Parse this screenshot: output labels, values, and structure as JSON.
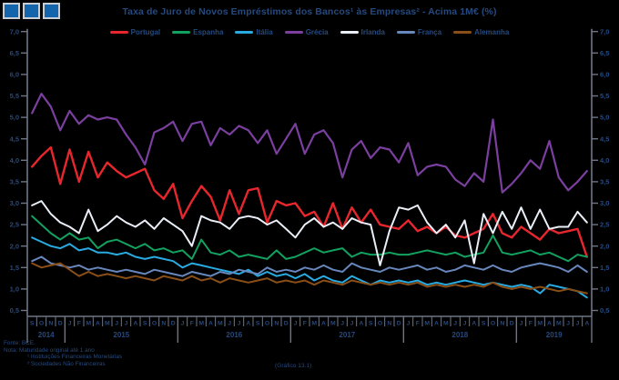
{
  "colors": {
    "background": "#000000",
    "text": "#25497e",
    "axis": "#6e7686"
  },
  "footer": {
    "source": "Fonte: BCE.",
    "note": "Nota: Maturidade original até 1 ano",
    "fn1": "¹ Instituições Financeiras Monetárias",
    "fn2": "² Sociedades Não Financeiras",
    "caption": "(Gráfico 13.1)"
  },
  "chart_data": {
    "type": "line",
    "title": "Taxa de Juro de Novos Empréstimos dos Bancos¹ às Empresas² - Acima 1M€ (%)",
    "ylabel": "%",
    "ylim": [
      0.5,
      7.0
    ],
    "grid": false,
    "legend_position": "top",
    "ytick_labels": [
      "7,0",
      "6,5",
      "6,0",
      "5,5",
      "5,0",
      "4,5",
      "4,0",
      "3,5",
      "3,0",
      "2,5",
      "2,0",
      "1,5",
      "1,0",
      "0,5"
    ],
    "ytick_values": [
      7.0,
      6.5,
      6.0,
      5.5,
      5.0,
      4.5,
      4.0,
      3.5,
      3.0,
      2.5,
      2.0,
      1.5,
      1.0,
      0.5
    ],
    "months": [
      "S",
      "O",
      "N",
      "D",
      "J",
      "F",
      "M",
      "A",
      "M",
      "J",
      "J",
      "A",
      "S",
      "O",
      "N",
      "D",
      "J",
      "F",
      "M",
      "A",
      "M",
      "J",
      "J",
      "A",
      "S",
      "O",
      "N",
      "D",
      "J",
      "F",
      "M",
      "A",
      "M",
      "J",
      "J",
      "A",
      "S",
      "O",
      "N",
      "D",
      "J",
      "F",
      "M",
      "A",
      "M",
      "J",
      "J",
      "A",
      "S",
      "O",
      "N",
      "D",
      "J",
      "F",
      "M",
      "A",
      "M",
      "J",
      "J",
      "A"
    ],
    "years": [
      {
        "label": "2014",
        "start": 0,
        "count": 4
      },
      {
        "label": "2015",
        "start": 4,
        "count": 12
      },
      {
        "label": "2016",
        "start": 16,
        "count": 12
      },
      {
        "label": "2017",
        "start": 28,
        "count": 12
      },
      {
        "label": "2018",
        "start": 40,
        "count": 12
      },
      {
        "label": "2019",
        "start": 52,
        "count": 8
      }
    ],
    "series": [
      {
        "name": "Portugal",
        "slug": "portugal",
        "color": "#e8262d",
        "width": 2.4,
        "values": [
          3.85,
          4.1,
          4.3,
          3.45,
          4.25,
          3.5,
          4.2,
          3.6,
          3.95,
          3.75,
          3.6,
          3.7,
          3.8,
          3.3,
          3.1,
          3.45,
          2.65,
          3.05,
          3.4,
          3.15,
          2.6,
          3.3,
          2.75,
          3.3,
          3.35,
          2.55,
          3.05,
          2.95,
          3.0,
          2.7,
          2.8,
          2.45,
          3.0,
          2.4,
          2.9,
          2.55,
          2.85,
          2.5,
          2.45,
          2.4,
          2.6,
          2.35,
          2.45,
          2.3,
          2.45,
          2.25,
          2.2,
          2.3,
          2.4,
          2.75,
          2.3,
          2.2,
          2.45,
          2.3,
          2.15,
          2.4,
          2.3,
          2.35,
          2.4,
          1.75
        ]
      },
      {
        "name": "Espanha",
        "slug": "espanha",
        "color": "#12a15e",
        "width": 2,
        "values": [
          2.7,
          2.5,
          2.3,
          2.15,
          2.3,
          2.15,
          2.2,
          1.95,
          2.1,
          2.15,
          2.05,
          1.95,
          2.05,
          1.9,
          1.95,
          1.85,
          1.9,
          1.7,
          2.15,
          1.85,
          1.8,
          1.9,
          1.75,
          1.8,
          1.75,
          1.7,
          1.9,
          1.7,
          1.75,
          1.85,
          1.95,
          1.85,
          1.9,
          1.95,
          1.75,
          1.85,
          1.8,
          1.8,
          1.85,
          1.8,
          1.8,
          1.85,
          1.9,
          1.85,
          1.8,
          1.85,
          1.75,
          1.8,
          1.85,
          2.25,
          1.85,
          1.8,
          1.85,
          1.9,
          1.8,
          1.85,
          1.75,
          1.65,
          1.8,
          1.75
        ]
      },
      {
        "name": "Itália",
        "slug": "italia",
        "color": "#29abe2",
        "width": 2,
        "values": [
          2.2,
          2.1,
          2.0,
          1.95,
          2.05,
          1.9,
          1.95,
          1.85,
          1.85,
          1.8,
          1.85,
          1.75,
          1.7,
          1.75,
          1.7,
          1.65,
          1.5,
          1.6,
          1.55,
          1.5,
          1.45,
          1.4,
          1.35,
          1.45,
          1.3,
          1.4,
          1.3,
          1.35,
          1.25,
          1.35,
          1.2,
          1.3,
          1.2,
          1.15,
          1.3,
          1.2,
          1.1,
          1.2,
          1.15,
          1.2,
          1.15,
          1.2,
          1.1,
          1.15,
          1.1,
          1.15,
          1.2,
          1.15,
          1.1,
          1.15,
          1.1,
          1.05,
          1.1,
          1.05,
          0.9,
          1.1,
          1.05,
          1.0,
          0.95,
          0.8
        ]
      },
      {
        "name": "Grécia",
        "slug": "grecia",
        "color": "#7b3fa0",
        "width": 2.2,
        "values": [
          5.1,
          5.55,
          5.25,
          4.7,
          5.15,
          4.85,
          5.05,
          4.95,
          5.0,
          4.95,
          4.6,
          4.3,
          3.9,
          4.65,
          4.75,
          4.9,
          4.45,
          4.85,
          4.9,
          4.35,
          4.75,
          4.6,
          4.8,
          4.7,
          4.4,
          4.7,
          4.15,
          4.5,
          4.85,
          4.15,
          4.6,
          4.7,
          4.4,
          3.6,
          4.25,
          4.45,
          4.05,
          4.3,
          4.25,
          3.95,
          4.4,
          3.65,
          3.85,
          3.9,
          3.85,
          3.55,
          3.4,
          3.7,
          3.5,
          4.95,
          3.25,
          3.45,
          3.7,
          4.0,
          3.8,
          4.45,
          3.6,
          3.3,
          3.5,
          3.75
        ]
      },
      {
        "name": "Irlanda",
        "slug": "irlanda",
        "color": "#e9eef7",
        "width": 2,
        "values": [
          2.95,
          3.05,
          2.75,
          2.55,
          2.45,
          2.3,
          2.85,
          2.35,
          2.5,
          2.7,
          2.55,
          2.45,
          2.6,
          2.4,
          2.65,
          2.5,
          2.35,
          2.0,
          2.7,
          2.6,
          2.55,
          2.4,
          2.65,
          2.7,
          2.65,
          2.5,
          2.6,
          2.4,
          2.2,
          2.5,
          2.65,
          2.45,
          2.55,
          2.4,
          2.65,
          2.55,
          2.5,
          1.55,
          2.35,
          2.9,
          2.85,
          2.95,
          2.55,
          2.3,
          2.5,
          2.2,
          2.6,
          1.6,
          2.75,
          2.3,
          2.8,
          2.4,
          2.9,
          2.4,
          2.85,
          2.4,
          2.45,
          2.45,
          2.8,
          2.55
        ]
      },
      {
        "name": "França",
        "slug": "franca",
        "color": "#6787bd",
        "width": 2,
        "values": [
          1.65,
          1.75,
          1.6,
          1.55,
          1.5,
          1.55,
          1.45,
          1.5,
          1.45,
          1.4,
          1.45,
          1.4,
          1.35,
          1.45,
          1.4,
          1.35,
          1.3,
          1.4,
          1.35,
          1.3,
          1.4,
          1.35,
          1.45,
          1.4,
          1.35,
          1.5,
          1.4,
          1.45,
          1.4,
          1.5,
          1.45,
          1.55,
          1.45,
          1.4,
          1.6,
          1.5,
          1.45,
          1.4,
          1.5,
          1.45,
          1.5,
          1.55,
          1.45,
          1.5,
          1.4,
          1.45,
          1.55,
          1.5,
          1.45,
          1.55,
          1.45,
          1.4,
          1.5,
          1.55,
          1.6,
          1.55,
          1.5,
          1.4,
          1.55,
          1.4
        ]
      },
      {
        "name": "Alemanha",
        "slug": "alemanha",
        "color": "#8a4f17",
        "width": 2,
        "values": [
          1.6,
          1.5,
          1.55,
          1.6,
          1.45,
          1.3,
          1.4,
          1.3,
          1.35,
          1.3,
          1.25,
          1.3,
          1.25,
          1.2,
          1.3,
          1.25,
          1.2,
          1.3,
          1.2,
          1.25,
          1.15,
          1.25,
          1.2,
          1.15,
          1.2,
          1.25,
          1.15,
          1.2,
          1.15,
          1.2,
          1.1,
          1.2,
          1.15,
          1.1,
          1.2,
          1.15,
          1.1,
          1.15,
          1.1,
          1.15,
          1.1,
          1.15,
          1.05,
          1.1,
          1.05,
          1.1,
          1.05,
          1.1,
          1.05,
          1.15,
          1.05,
          1.0,
          1.05,
          1.0,
          1.05,
          1.0,
          0.95,
          1.0,
          0.95,
          0.9
        ]
      }
    ]
  }
}
